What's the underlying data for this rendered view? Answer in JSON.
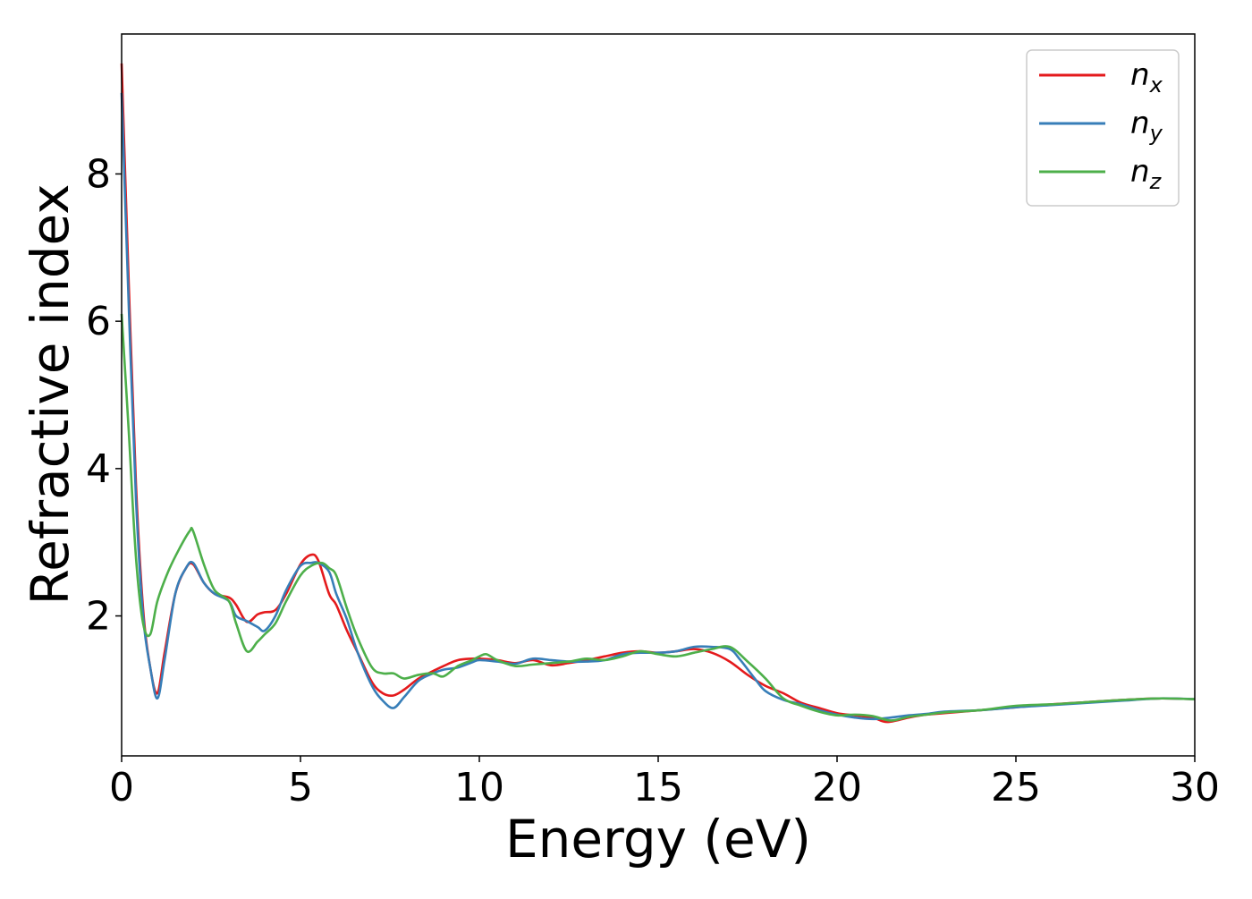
{
  "chart_data": {
    "type": "line",
    "title": "",
    "xlabel": "Energy (eV)",
    "ylabel": "Refractive index",
    "xlim": [
      0,
      30
    ],
    "ylim": [
      0.1,
      9.9
    ],
    "xticks": [
      0,
      5,
      10,
      15,
      20,
      25,
      30
    ],
    "yticks": [
      2,
      4,
      6,
      8
    ],
    "grid": false,
    "legend_position": "top-right",
    "series": [
      {
        "name": "n_x",
        "name_base": "n",
        "name_sub": "x",
        "color": "#e41a1c",
        "x": [
          0,
          0.2,
          0.4,
          0.6,
          0.8,
          1.0,
          1.2,
          1.5,
          1.8,
          2.0,
          2.3,
          2.6,
          3.0,
          3.2,
          3.5,
          3.8,
          4.0,
          4.3,
          4.6,
          5.0,
          5.3,
          5.5,
          5.8,
          6.0,
          6.3,
          6.6,
          7.0,
          7.3,
          7.6,
          7.9,
          8.3,
          8.7,
          9.0,
          9.4,
          9.8,
          10.0,
          10.5,
          11.0,
          11.5,
          12.0,
          12.5,
          13.0,
          13.5,
          14.0,
          14.5,
          15.0,
          15.5,
          16.0,
          16.5,
          17.0,
          17.5,
          18.0,
          18.5,
          19.0,
          19.5,
          20.0,
          20.5,
          21.0,
          21.4,
          22.0,
          22.5,
          23.0,
          24.0,
          25.0,
          26.0,
          27.0,
          28.0,
          29.0,
          30.0
        ],
        "y": [
          9.5,
          6.5,
          3.8,
          2.1,
          1.3,
          0.95,
          1.5,
          2.3,
          2.65,
          2.7,
          2.45,
          2.3,
          2.25,
          2.15,
          1.92,
          2.02,
          2.05,
          2.08,
          2.3,
          2.7,
          2.83,
          2.75,
          2.3,
          2.15,
          1.8,
          1.5,
          1.1,
          0.95,
          0.92,
          1.0,
          1.15,
          1.25,
          1.32,
          1.4,
          1.42,
          1.42,
          1.4,
          1.36,
          1.4,
          1.33,
          1.36,
          1.4,
          1.45,
          1.5,
          1.52,
          1.5,
          1.52,
          1.55,
          1.5,
          1.38,
          1.2,
          1.05,
          0.95,
          0.82,
          0.75,
          0.68,
          0.65,
          0.62,
          0.56,
          0.62,
          0.66,
          0.68,
          0.72,
          0.76,
          0.8,
          0.83,
          0.86,
          0.88,
          0.87
        ]
      },
      {
        "name": "n_y",
        "name_base": "n",
        "name_sub": "y",
        "color": "#377eb8",
        "x": [
          0,
          0.2,
          0.4,
          0.6,
          0.8,
          1.0,
          1.2,
          1.5,
          1.8,
          2.0,
          2.3,
          2.6,
          3.0,
          3.2,
          3.5,
          3.8,
          4.0,
          4.3,
          4.6,
          5.0,
          5.3,
          5.5,
          5.8,
          6.0,
          6.3,
          6.6,
          7.0,
          7.3,
          7.6,
          7.9,
          8.3,
          8.7,
          9.0,
          9.4,
          9.8,
          10.0,
          10.5,
          11.0,
          11.5,
          12.0,
          12.5,
          13.0,
          13.5,
          14.0,
          14.5,
          15.0,
          15.5,
          16.0,
          16.5,
          17.0,
          17.3,
          17.7,
          18.0,
          18.5,
          19.0,
          19.5,
          20.0,
          20.5,
          21.0,
          21.5,
          22.0,
          22.5,
          23.0,
          24.0,
          25.0,
          26.0,
          27.0,
          28.0,
          29.0,
          30.0
        ],
        "y": [
          9.1,
          6.2,
          3.6,
          2.0,
          1.3,
          0.88,
          1.4,
          2.3,
          2.65,
          2.72,
          2.45,
          2.3,
          2.2,
          2.0,
          1.93,
          1.85,
          1.8,
          2.0,
          2.35,
          2.68,
          2.72,
          2.72,
          2.6,
          2.3,
          1.95,
          1.5,
          1.05,
          0.85,
          0.75,
          0.9,
          1.12,
          1.22,
          1.27,
          1.3,
          1.37,
          1.4,
          1.38,
          1.35,
          1.42,
          1.4,
          1.38,
          1.38,
          1.4,
          1.48,
          1.5,
          1.5,
          1.52,
          1.58,
          1.58,
          1.55,
          1.4,
          1.15,
          0.98,
          0.86,
          0.8,
          0.72,
          0.66,
          0.62,
          0.6,
          0.62,
          0.65,
          0.67,
          0.7,
          0.72,
          0.76,
          0.79,
          0.82,
          0.85,
          0.88,
          0.87
        ]
      },
      {
        "name": "n_z",
        "name_base": "n",
        "name_sub": "z",
        "color": "#4daf4a",
        "x": [
          0,
          0.2,
          0.4,
          0.6,
          0.8,
          1.0,
          1.3,
          1.6,
          1.9,
          2.0,
          2.3,
          2.6,
          3.0,
          3.2,
          3.5,
          3.8,
          4.0,
          4.3,
          4.6,
          5.0,
          5.3,
          5.6,
          5.8,
          6.0,
          6.3,
          6.6,
          7.0,
          7.3,
          7.6,
          7.9,
          8.3,
          8.7,
          9.0,
          9.4,
          9.8,
          10.0,
          10.2,
          10.5,
          11.0,
          11.5,
          12.0,
          12.5,
          13.0,
          13.5,
          14.0,
          14.5,
          15.0,
          15.5,
          16.0,
          16.5,
          17.0,
          17.5,
          18.0,
          18.5,
          19.0,
          19.5,
          20.0,
          20.5,
          21.0,
          21.5,
          22.0,
          22.5,
          23.0,
          24.0,
          25.0,
          26.0,
          27.0,
          28.0,
          29.0,
          30.0
        ],
        "y": [
          6.1,
          4.5,
          2.8,
          1.9,
          1.75,
          2.2,
          2.6,
          2.9,
          3.15,
          3.15,
          2.7,
          2.35,
          2.2,
          1.9,
          1.52,
          1.65,
          1.75,
          1.9,
          2.2,
          2.55,
          2.68,
          2.72,
          2.65,
          2.55,
          2.1,
          1.7,
          1.3,
          1.22,
          1.22,
          1.15,
          1.2,
          1.22,
          1.18,
          1.32,
          1.4,
          1.45,
          1.48,
          1.4,
          1.32,
          1.34,
          1.36,
          1.38,
          1.42,
          1.4,
          1.45,
          1.52,
          1.48,
          1.45,
          1.5,
          1.55,
          1.58,
          1.38,
          1.15,
          0.88,
          0.78,
          0.7,
          0.65,
          0.66,
          0.64,
          0.58,
          0.63,
          0.66,
          0.69,
          0.72,
          0.78,
          0.8,
          0.83,
          0.86,
          0.88,
          0.87
        ]
      }
    ]
  }
}
